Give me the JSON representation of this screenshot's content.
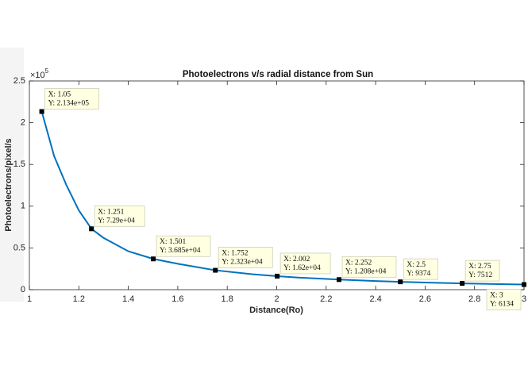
{
  "chart_data": {
    "type": "line",
    "title": "Photoelectrons v/s radial distance from Sun",
    "x_label": "Distance(Ro)",
    "y_label": "Photoelectrons/pixel/s",
    "y_multiplier": {
      "base": "×10",
      "exponent": "5"
    },
    "x": [
      1.05,
      1.1,
      1.15,
      1.2,
      1.251,
      1.3,
      1.4,
      1.501,
      1.6,
      1.752,
      1.9,
      2.002,
      2.1,
      2.252,
      2.4,
      2.5,
      2.6,
      2.75,
      2.9,
      3
    ],
    "series": [
      {
        "color": "#0072bd",
        "values": [
          2.134,
          1.6,
          1.25,
          0.95,
          0.729,
          0.62,
          0.46,
          0.3685,
          0.31,
          0.2323,
          0.185,
          0.162,
          0.143,
          0.1208,
          0.103,
          0.09374,
          0.086,
          0.07512,
          0.066,
          0.06134
        ]
      }
    ],
    "data_tips": [
      {
        "x": 1.05,
        "y": 2.134,
        "x_label": "X: 1.05",
        "y_label": "Y: 2.134e+05"
      },
      {
        "x": 1.251,
        "y": 0.729,
        "x_label": "X: 1.251",
        "y_label": "Y: 7.29e+04"
      },
      {
        "x": 1.501,
        "y": 0.3685,
        "x_label": "X: 1.501",
        "y_label": "Y: 3.685e+04"
      },
      {
        "x": 1.752,
        "y": 0.2323,
        "x_label": "X: 1.752",
        "y_label": "Y: 2.323e+04"
      },
      {
        "x": 2.002,
        "y": 0.162,
        "x_label": "X: 2.002",
        "y_label": "Y: 1.62e+04"
      },
      {
        "x": 2.252,
        "y": 0.1208,
        "x_label": "X: 2.252",
        "y_label": "Y: 1.208e+04"
      },
      {
        "x": 2.5,
        "y": 0.09374,
        "x_label": "X: 2.5",
        "y_label": "Y: 9374"
      },
      {
        "x": 2.75,
        "y": 0.07512,
        "x_label": "X: 2.75",
        "y_label": "Y: 7512"
      },
      {
        "x": 3,
        "y": 0.06134,
        "x_label": "X: 3",
        "y_label": "Y: 6134"
      }
    ],
    "xlim": [
      1,
      3
    ],
    "xticks": [
      1,
      1.2,
      1.4,
      1.6,
      1.8,
      2,
      2.2,
      2.4,
      2.6,
      2.8,
      3
    ],
    "ylim": [
      0,
      2.5
    ],
    "yticks": [
      0,
      0.5,
      1,
      1.5,
      2,
      2.5
    ],
    "grid": false
  }
}
